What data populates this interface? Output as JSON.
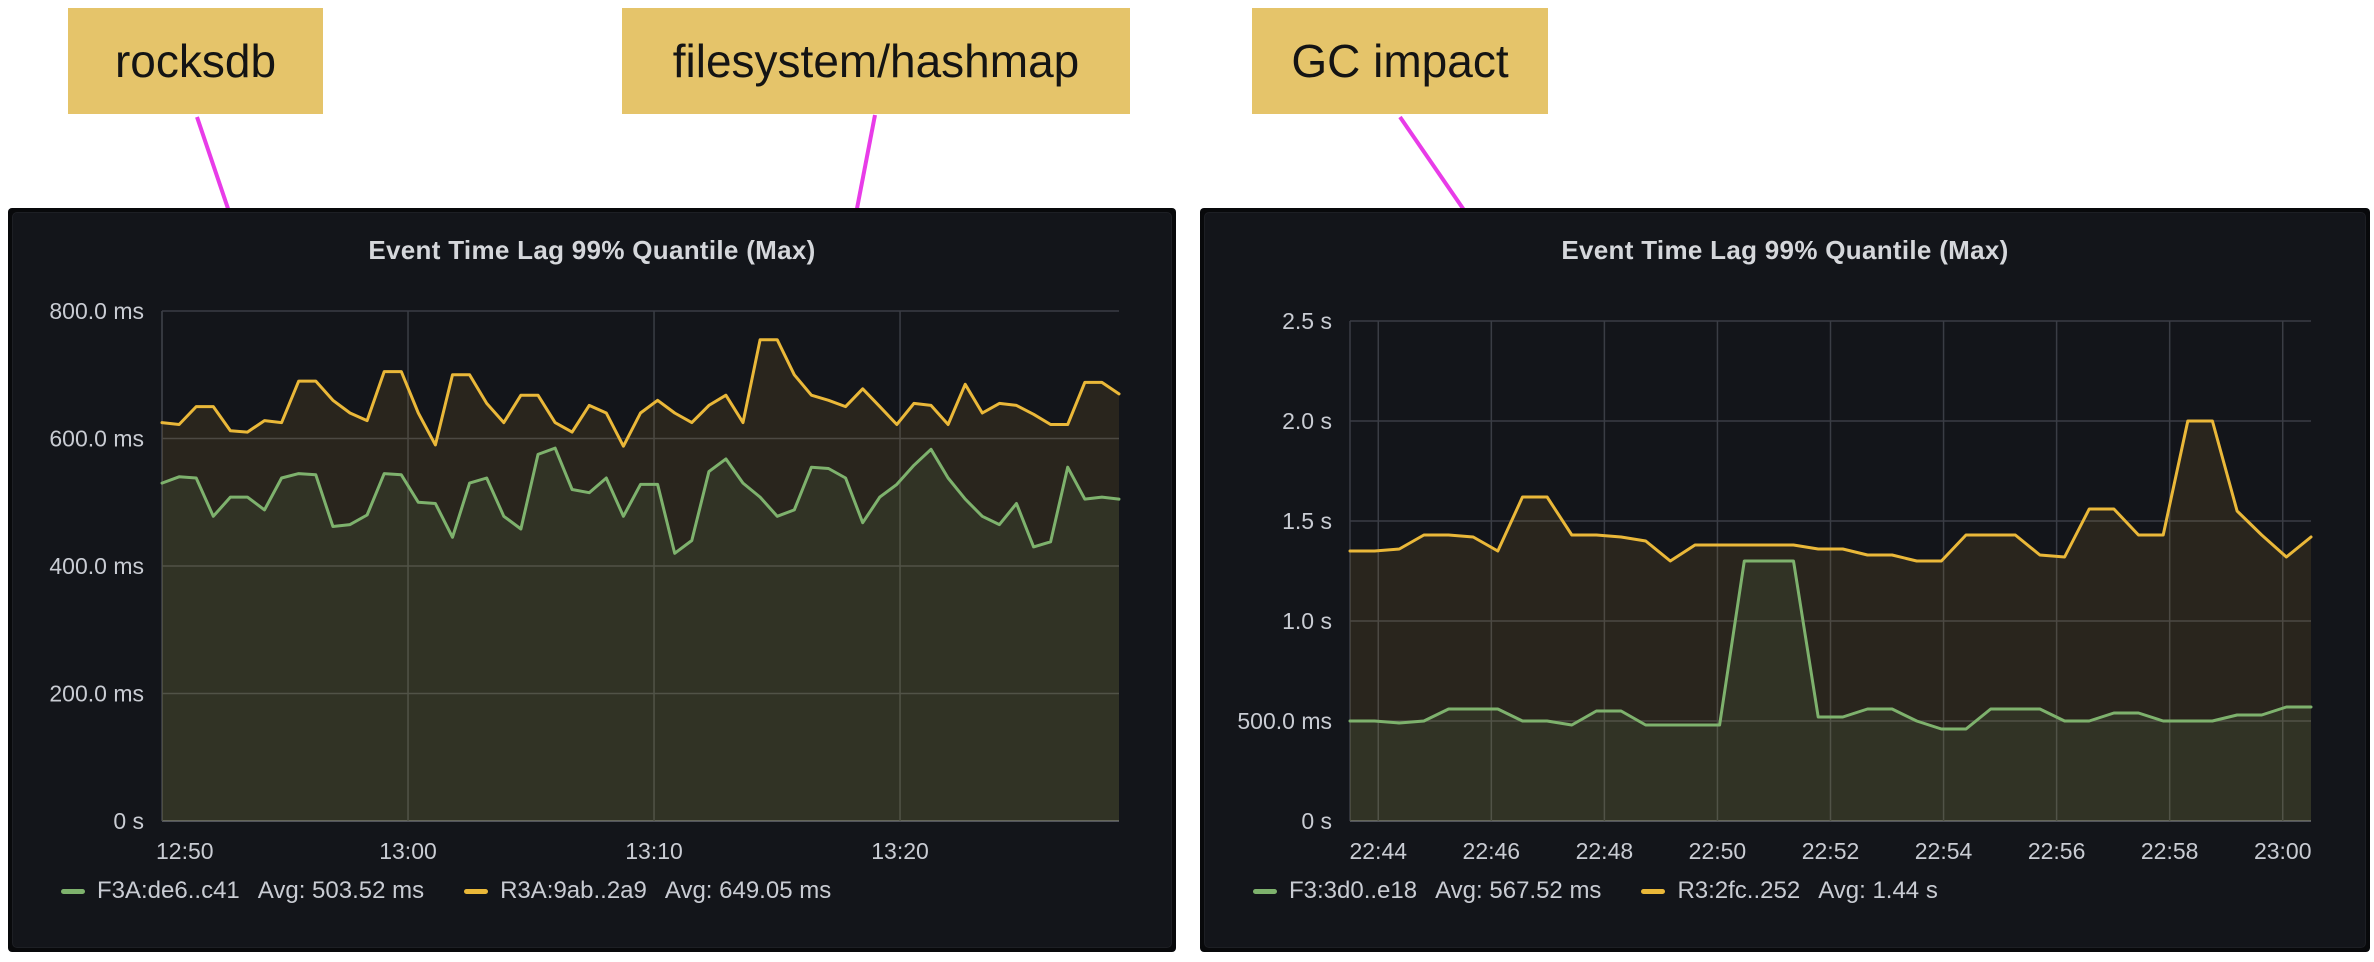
{
  "page": {
    "background": "#ffffff"
  },
  "theme": {
    "panel_bg": "#13151a",
    "title_color": "#d5d7db",
    "axis_text": "#c9ccd3",
    "grid_color": "#3a3d45",
    "axis_line_color": "#52545c"
  },
  "annotations": {
    "box_color": "#e5c46a",
    "text_color": "#141414",
    "arrow_color": "#e83ce8",
    "labels": [
      {
        "id": "rocksdb",
        "text": "rocksdb"
      },
      {
        "id": "filesystem-hashmap",
        "text": "filesystem/hashmap"
      },
      {
        "id": "gc-impact",
        "text": "GC impact"
      }
    ]
  },
  "panels": [
    {
      "title": "Event Time Lag 99% Quantile (Max)",
      "legend": [
        {
          "label": "F3A:de6..c41",
          "avg": "Avg: 503.52 ms",
          "color": "#7EB26D"
        },
        {
          "label": "R3A:9ab..2a9",
          "avg": "Avg: 649.05 ms",
          "color": "#EAB839"
        }
      ]
    },
    {
      "title": "Event Time Lag 99% Quantile (Max)",
      "legend": [
        {
          "label": "F3:3d0..e18",
          "avg": "Avg: 567.52 ms",
          "color": "#7EB26D"
        },
        {
          "label": "R3:2fc..252",
          "avg": "Avg: 1.44 s",
          "color": "#EAB839"
        }
      ]
    }
  ],
  "chart_data": [
    {
      "type": "area",
      "title": "Event Time Lag 99% Quantile (Max)",
      "unit": "ms",
      "ylim": [
        0,
        800
      ],
      "y_ticks": [
        {
          "label": "800.0 ms",
          "v": 800
        },
        {
          "label": "600.0 ms",
          "v": 600
        },
        {
          "label": "400.0 ms",
          "v": 400
        },
        {
          "label": "200.0 ms",
          "v": 200
        },
        {
          "label": "0 s",
          "v": 0
        }
      ],
      "x_range_minutes": [
        50,
        88.9
      ],
      "x_ticks": [
        {
          "label": "12:50",
          "t": 50
        },
        {
          "label": "13:00",
          "t": 60
        },
        {
          "label": "13:10",
          "t": 70
        },
        {
          "label": "13:20",
          "t": 80
        }
      ],
      "grid": true,
      "legend_position": "bottom",
      "series": [
        {
          "name": "F3A:de6..c41",
          "avg": "Avg: 503.52 ms",
          "color": "#7EB26D",
          "values": [
            530,
            540,
            538,
            478,
            508,
            508,
            488,
            538,
            545,
            543,
            462,
            465,
            480,
            545,
            543,
            500,
            498,
            445,
            530,
            538,
            478,
            458,
            575,
            585,
            520,
            515,
            538,
            478,
            528,
            528,
            420,
            440,
            548,
            568,
            530,
            508,
            478,
            488,
            555,
            553,
            538,
            468,
            508,
            528,
            558,
            583,
            538,
            505,
            478,
            465,
            498,
            430,
            438,
            555,
            505,
            508,
            505
          ]
        },
        {
          "name": "R3A:9ab..2a9",
          "avg": "Avg: 649.05 ms",
          "color": "#EAB839",
          "values": [
            625,
            622,
            650,
            650,
            612,
            610,
            628,
            625,
            690,
            690,
            660,
            640,
            628,
            705,
            705,
            640,
            590,
            700,
            700,
            655,
            625,
            668,
            668,
            625,
            610,
            652,
            640,
            588,
            640,
            660,
            640,
            625,
            652,
            668,
            625,
            755,
            755,
            700,
            668,
            660,
            650,
            678,
            650,
            622,
            655,
            652,
            622,
            685,
            640,
            655,
            652,
            638,
            622,
            622,
            688,
            688,
            670
          ]
        }
      ]
    },
    {
      "type": "area",
      "title": "Event Time Lag 99% Quantile (Max)",
      "unit": "ms",
      "ylim": [
        0,
        2500
      ],
      "y_ticks": [
        {
          "label": "2.5 s",
          "v": 2500
        },
        {
          "label": "2.0 s",
          "v": 2000
        },
        {
          "label": "1.5 s",
          "v": 1500
        },
        {
          "label": "1.0 s",
          "v": 1000
        },
        {
          "label": "500.0 ms",
          "v": 500
        },
        {
          "label": "0 s",
          "v": 0
        }
      ],
      "x_range_minutes": [
        43.5,
        60.5
      ],
      "x_ticks": [
        {
          "label": "22:44",
          "t": 44
        },
        {
          "label": "22:46",
          "t": 46
        },
        {
          "label": "22:48",
          "t": 48
        },
        {
          "label": "22:50",
          "t": 50
        },
        {
          "label": "22:52",
          "t": 52
        },
        {
          "label": "22:54",
          "t": 54
        },
        {
          "label": "22:56",
          "t": 56
        },
        {
          "label": "22:58",
          "t": 58
        },
        {
          "label": "23:00",
          "t": 60
        }
      ],
      "grid": true,
      "legend_position": "bottom",
      "series": [
        {
          "name": "F3:3d0..e18",
          "avg": "Avg: 567.52 ms",
          "color": "#7EB26D",
          "values": [
            500,
            500,
            490,
            500,
            560,
            560,
            560,
            500,
            500,
            480,
            550,
            550,
            480,
            480,
            480,
            480,
            1300,
            1300,
            1300,
            520,
            520,
            560,
            560,
            500,
            460,
            460,
            560,
            560,
            560,
            500,
            500,
            540,
            540,
            500,
            500,
            500,
            530,
            530,
            570,
            570
          ]
        },
        {
          "name": "R3:2fc..252",
          "avg": "Avg: 1.44 s",
          "color": "#EAB839",
          "values": [
            1350,
            1350,
            1360,
            1430,
            1430,
            1420,
            1350,
            1620,
            1620,
            1430,
            1430,
            1420,
            1400,
            1300,
            1380,
            1380,
            1380,
            1380,
            1380,
            1360,
            1360,
            1330,
            1330,
            1300,
            1300,
            1430,
            1430,
            1430,
            1330,
            1320,
            1560,
            1560,
            1430,
            1430,
            2000,
            2000,
            1550,
            1430,
            1320,
            1420
          ]
        }
      ]
    }
  ]
}
